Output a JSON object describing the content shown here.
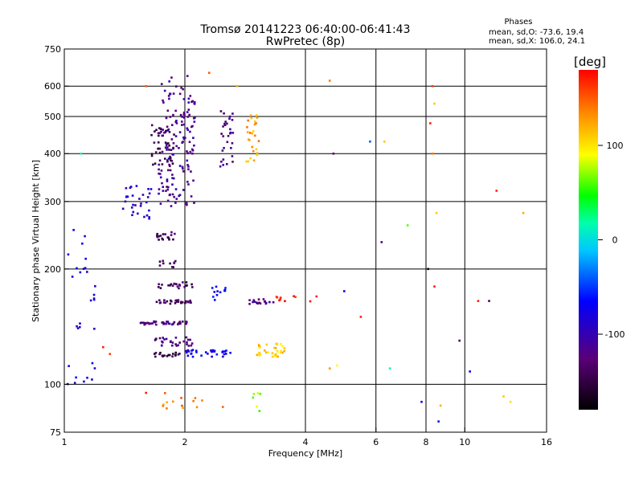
{
  "chart_data": {
    "type": "scatter",
    "title": "Tromsø 20141223 06:40:00-06:41:43",
    "subtitle": "RwPretec (8p)",
    "xlabel": "Frequency [MHz]",
    "ylabel": "Stationary phase Virtual Height [km]",
    "xscale": "log2",
    "yscale": "log",
    "xlim": [
      1,
      16
    ],
    "ylim": [
      75,
      750
    ],
    "xticks": [
      "1",
      "2",
      "4",
      "6",
      "8",
      "10",
      "16"
    ],
    "xtick_values": [
      1,
      2,
      4,
      6,
      8,
      10,
      16
    ],
    "xgrid": [
      2,
      4,
      6,
      8,
      10
    ],
    "yticks": [
      "75",
      "100",
      "200",
      "300",
      "400",
      "500",
      "600",
      "750"
    ],
    "ytick_values": [
      75,
      100,
      200,
      300,
      400,
      500,
      600,
      750
    ],
    "ygrid": [
      100,
      200,
      300,
      400,
      500,
      600
    ],
    "legend": {
      "title": "Phases",
      "lines": [
        "mean, sd,O: -73.6, 19.4",
        "mean, sd,X: 106.0, 24.1"
      ],
      "position": "top-right"
    },
    "colorbar": {
      "label": "[deg]",
      "range": [
        -180,
        180
      ],
      "ticks": [
        "100",
        "0",
        "-100"
      ],
      "tick_values": [
        100,
        0,
        -100
      ]
    },
    "clusters": [
      {
        "f": [
          1.72,
          2.12
        ],
        "h": [
          290,
          640
        ],
        "phase": -115,
        "n": 140
      },
      {
        "f": [
          1.65,
          1.88
        ],
        "h": [
          360,
          480
        ],
        "phase": -140,
        "n": 50
      },
      {
        "f": [
          1.4,
          1.65
        ],
        "h": [
          270,
          330
        ],
        "phase": -95,
        "n": 30
      },
      {
        "f": [
          2.45,
          2.65
        ],
        "h": [
          370,
          540
        ],
        "phase": -120,
        "n": 30
      },
      {
        "f": [
          2.85,
          3.1
        ],
        "h": [
          380,
          520
        ],
        "phase": 125,
        "n": 26
      },
      {
        "f": [
          1.7,
          1.9
        ],
        "h": [
          236,
          250
        ],
        "phase": -140,
        "n": 18
      },
      {
        "f": [
          1.72,
          1.9
        ],
        "h": [
          202,
          210
        ],
        "phase": -135,
        "n": 10
      },
      {
        "f": [
          1.7,
          2.1
        ],
        "h": [
          178,
          185
        ],
        "phase": -140,
        "n": 22
      },
      {
        "f": [
          1.7,
          2.1
        ],
        "h": [
          162,
          166
        ],
        "phase": -135,
        "n": 30
      },
      {
        "f": [
          1.55,
          2.05
        ],
        "h": [
          143,
          146
        ],
        "phase": -125,
        "n": 42
      },
      {
        "f": [
          1.68,
          2.1
        ],
        "h": [
          126,
          133
        ],
        "phase": -120,
        "n": 30
      },
      {
        "f": [
          1.65,
          1.95
        ],
        "h": [
          118,
          121
        ],
        "phase": -155,
        "n": 18
      },
      {
        "f": [
          2.0,
          2.2
        ],
        "h": [
          118,
          123
        ],
        "phase": -75,
        "n": 14
      },
      {
        "f": [
          2.25,
          2.6
        ],
        "h": [
          118,
          123
        ],
        "phase": -75,
        "n": 18
      },
      {
        "f": [
          2.2,
          2.6
        ],
        "h": [
          165,
          180
        ],
        "phase": -70,
        "n": 12
      },
      {
        "f": [
          2.9,
          3.35
        ],
        "h": [
          162,
          167
        ],
        "phase": -120,
        "n": 18
      },
      {
        "f": [
          3.0,
          3.55
        ],
        "h": [
          118,
          128
        ],
        "phase": 110,
        "n": 34
      },
      {
        "f": [
          3.35,
          4.3
        ],
        "h": [
          164,
          170
        ],
        "phase": 170,
        "n": 10
      },
      {
        "f": [
          1.0,
          1.2
        ],
        "h": [
          100,
          260
        ],
        "phase": -80,
        "n": 30
      },
      {
        "f": [
          1.75,
          2.6
        ],
        "h": [
          85,
          95
        ],
        "phase": 140,
        "n": 14
      },
      {
        "f": [
          2.9,
          3.1
        ],
        "h": [
          85,
          95
        ],
        "phase": 70,
        "n": 6
      }
    ],
    "points": [
      {
        "f": 8.2,
        "h": 480,
        "phase": 170
      },
      {
        "f": 8.3,
        "h": 600,
        "phase": 160
      },
      {
        "f": 8.4,
        "h": 540,
        "phase": 110
      },
      {
        "f": 8.3,
        "h": 400,
        "phase": 140
      },
      {
        "f": 6.3,
        "h": 430,
        "phase": 110
      },
      {
        "f": 5.8,
        "h": 430,
        "phase": -40
      },
      {
        "f": 4.7,
        "h": 400,
        "phase": -130
      },
      {
        "f": 12.0,
        "h": 320,
        "phase": 170
      },
      {
        "f": 14.0,
        "h": 280,
        "phase": 120
      },
      {
        "f": 8.5,
        "h": 280,
        "phase": 110
      },
      {
        "f": 7.2,
        "h": 260,
        "phase": 60
      },
      {
        "f": 6.2,
        "h": 235,
        "phase": -110
      },
      {
        "f": 8.1,
        "h": 200,
        "phase": -170
      },
      {
        "f": 8.4,
        "h": 180,
        "phase": 170
      },
      {
        "f": 10.8,
        "h": 165,
        "phase": 170
      },
      {
        "f": 11.5,
        "h": 165,
        "phase": -140
      },
      {
        "f": 5.0,
        "h": 175,
        "phase": -80
      },
      {
        "f": 5.5,
        "h": 150,
        "phase": 170
      },
      {
        "f": 9.7,
        "h": 130,
        "phase": -140
      },
      {
        "f": 10.3,
        "h": 108,
        "phase": -70
      },
      {
        "f": 6.5,
        "h": 110,
        "phase": 20
      },
      {
        "f": 4.8,
        "h": 112,
        "phase": 90
      },
      {
        "f": 4.6,
        "h": 110,
        "phase": 130
      },
      {
        "f": 12.5,
        "h": 93,
        "phase": 110
      },
      {
        "f": 13.0,
        "h": 90,
        "phase": 100
      },
      {
        "f": 7.8,
        "h": 90,
        "phase": -70
      },
      {
        "f": 8.7,
        "h": 88,
        "phase": 120
      },
      {
        "f": 8.6,
        "h": 80,
        "phase": -60
      },
      {
        "f": 1.6,
        "h": 600,
        "phase": 150
      },
      {
        "f": 1.1,
        "h": 400,
        "phase": 20
      },
      {
        "f": 1.25,
        "h": 125,
        "phase": 170
      },
      {
        "f": 2.7,
        "h": 600,
        "phase": 120
      },
      {
        "f": 4.6,
        "h": 620,
        "phase": 140
      },
      {
        "f": 2.3,
        "h": 650,
        "phase": 150
      },
      {
        "f": 1.3,
        "h": 120,
        "phase": 160
      },
      {
        "f": 1.6,
        "h": 95,
        "phase": 170
      }
    ]
  }
}
